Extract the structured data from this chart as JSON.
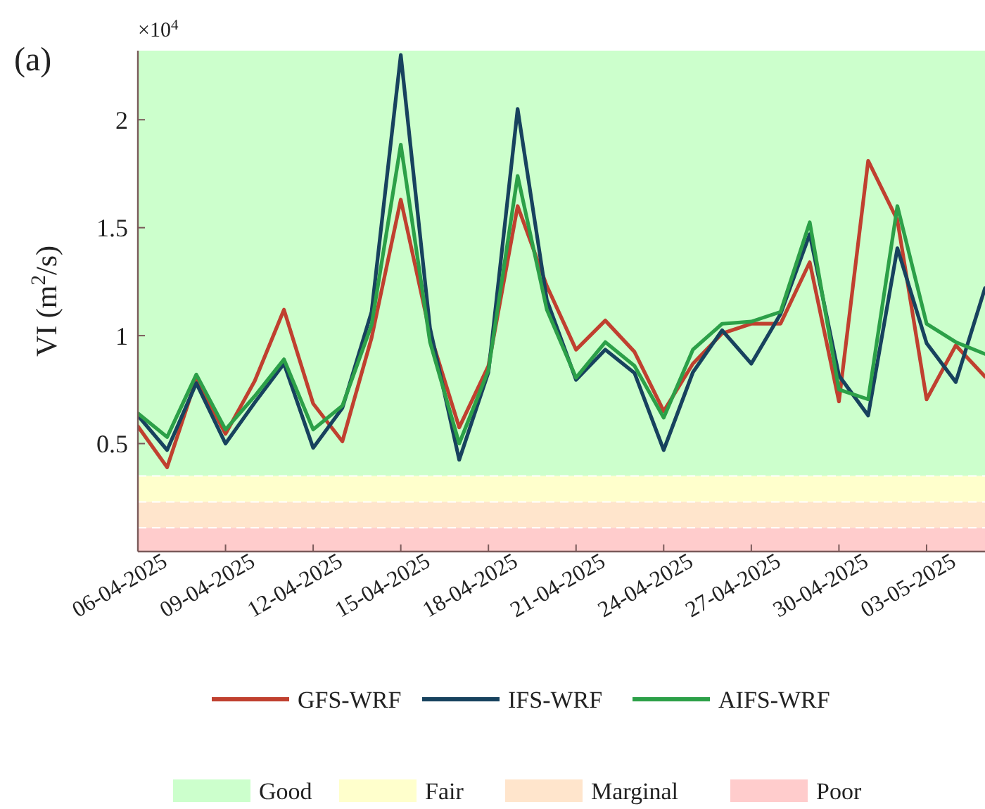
{
  "chart_data": {
    "type": "line",
    "ylabel": "VI (m$^{2}$/s)",
    "annotations": [
      "(a)",
      "×10$^{4}$"
    ],
    "x": [
      "2025-04-06",
      "2025-04-07",
      "2025-04-08",
      "2025-04-09",
      "2025-04-10",
      "2025-04-11",
      "2025-04-12",
      "2025-04-13",
      "2025-04-14",
      "2025-04-15",
      "2025-04-16",
      "2025-04-17",
      "2025-04-18",
      "2025-04-19",
      "2025-04-20",
      "2025-04-21",
      "2025-04-22",
      "2025-04-23",
      "2025-04-24",
      "2025-04-25",
      "2025-04-26",
      "2025-04-27",
      "2025-04-28",
      "2025-04-29",
      "2025-04-30",
      "2025-05-01",
      "2025-05-02",
      "2025-05-03",
      "2025-05-04",
      "2025-05-05"
    ],
    "series": [
      {
        "name": "GFS-WRF",
        "color": "#c0402f",
        "values": [
          0.58,
          0.39,
          0.8,
          0.545,
          0.79,
          1.12,
          0.685,
          0.51,
          0.99,
          1.63,
          1.01,
          0.575,
          0.86,
          1.6,
          1.23,
          0.935,
          1.07,
          0.925,
          0.65,
          0.87,
          1.01,
          1.055,
          1.055,
          1.34,
          0.695,
          1.81,
          1.535,
          0.705,
          0.955,
          0.81
        ]
      },
      {
        "name": "IFS-WRF",
        "color": "#17425e",
        "values": [
          0.63,
          0.47,
          0.78,
          0.5,
          0.69,
          0.87,
          0.48,
          0.665,
          1.11,
          2.3,
          1.035,
          0.425,
          0.83,
          2.05,
          1.165,
          0.795,
          0.935,
          0.827,
          0.47,
          0.83,
          1.025,
          0.87,
          1.1,
          1.47,
          0.815,
          0.63,
          1.405,
          0.965,
          0.785,
          1.22
        ]
      },
      {
        "name": "AIFS-WRF",
        "color": "#2ca048",
        "values": [
          0.64,
          0.53,
          0.82,
          0.565,
          0.72,
          0.89,
          0.565,
          0.675,
          1.05,
          1.885,
          0.97,
          0.5,
          0.84,
          1.74,
          1.12,
          0.805,
          0.97,
          0.86,
          0.62,
          0.935,
          1.055,
          1.065,
          1.11,
          1.525,
          0.75,
          0.705,
          1.6,
          1.055,
          0.97,
          0.915
        ]
      }
    ],
    "xlim": [
      "2025-04-06",
      "2025-05-05"
    ],
    "xticks": [
      {
        "value": "2025-04-06",
        "label": "06-04-2025"
      },
      {
        "value": "2025-04-09",
        "label": "09-04-2025"
      },
      {
        "value": "2025-04-12",
        "label": "12-04-2025"
      },
      {
        "value": "2025-04-15",
        "label": "15-04-2025"
      },
      {
        "value": "2025-04-18",
        "label": "18-04-2025"
      },
      {
        "value": "2025-04-21",
        "label": "21-04-2025"
      },
      {
        "value": "2025-04-24",
        "label": "24-04-2025"
      },
      {
        "value": "2025-04-27",
        "label": "27-04-2025"
      },
      {
        "value": "2025-04-30",
        "label": "30-04-2025"
      },
      {
        "value": "2025-05-03",
        "label": "03-05-2025"
      }
    ],
    "ylim": [
      0,
      2.32
    ],
    "yticks": [
      0.5,
      1,
      1.5,
      2
    ],
    "bands": [
      {
        "axis": "y",
        "from": 0.35,
        "to": 2.32,
        "label": "Good",
        "color": "#ccffcc"
      },
      {
        "axis": "y",
        "from": 0.23,
        "to": 0.35,
        "label": "Fair",
        "color": "#ffffcc"
      },
      {
        "axis": "y",
        "from": 0.11,
        "to": 0.23,
        "label": "Marginal",
        "color": "#ffe5cc"
      },
      {
        "axis": "y",
        "from": 0,
        "to": 0.11,
        "label": "Poor",
        "color": "#ffcccc"
      }
    ],
    "legend": "bottom",
    "grid": false,
    "line_style": "solid",
    "marker": "none"
  }
}
